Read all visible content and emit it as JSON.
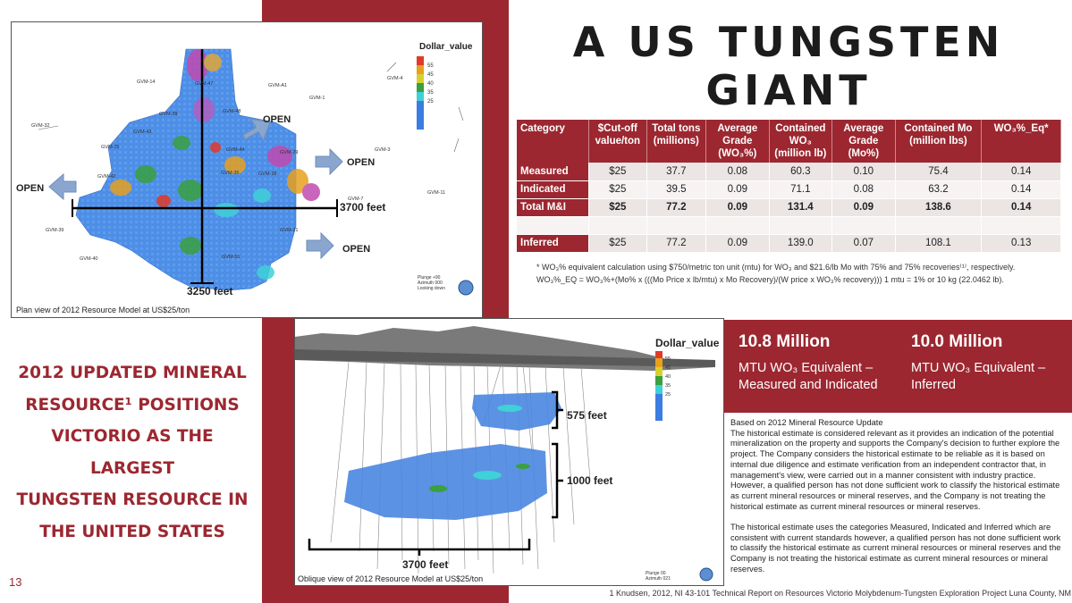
{
  "title": {
    "line1": "A US TUNGSTEN",
    "line2": "GIANT"
  },
  "plan_view": {
    "legend_title": "Dollar_value",
    "legend_ticks": [
      "55",
      "45",
      "40",
      "35",
      "25"
    ],
    "labels": {
      "open_top": "OPEN",
      "open_right": "OPEN",
      "open_left": "OPEN",
      "open_bottom": "OPEN",
      "width": "3700 feet",
      "height": "3250 feet"
    },
    "drillholes": [
      "GVM-14",
      "GVM-47",
      "GVM-A1",
      "GVM-1",
      "GVM-4",
      "GVM-32",
      "GVM-48",
      "GVM-25",
      "GVM-43",
      "GVM-29",
      "GVM-3",
      "GVM-11",
      "GVM-7",
      "GVM-39",
      "GVM-40",
      "GVM-51",
      "GVM-21",
      "GVM-42",
      "GVM-38",
      "GVM-44",
      "GVM-35",
      "GVM-28"
    ],
    "plunge_note": "Plunge +90\nAzimuth 000\nLooking down",
    "caption": "Plan view of 2012 Resource Model at US$25/ton"
  },
  "oblique_view": {
    "legend_title": "Dollar_value",
    "legend_ticks": [
      "55",
      "45",
      "40",
      "35",
      "25"
    ],
    "labels": {
      "upper_span": "575 feet",
      "lower_span": "1000 feet",
      "width": "3700 feet"
    },
    "plunge_note": "Plunge 00\nAzimuth 021",
    "caption": "Oblique view of 2012 Resource Model at US$25/ton"
  },
  "table": {
    "headers": [
      "Category",
      "$Cut-off value/ton",
      "Total tons (millions)",
      "Average Grade (WO₃%)",
      "Contained WO₃ (million lb)",
      "Average Grade (Mo%)",
      "Contained Mo (million lbs)",
      "WO₃%_Eq*"
    ],
    "rows": [
      [
        "Measured",
        "$25",
        "37.7",
        "0.08",
        "60.3",
        "0.10",
        "75.4",
        "0.14"
      ],
      [
        "Indicated",
        "$25",
        "39.5",
        "0.09",
        "71.1",
        "0.08",
        "63.2",
        "0.14"
      ],
      [
        "Total M&I",
        "$25",
        "77.2",
        "0.09",
        "131.4",
        "0.09",
        "138.6",
        "0.14"
      ],
      [
        "",
        "",
        "",
        "",
        "",
        "",
        "",
        ""
      ],
      [
        "Inferred",
        "$25",
        "77.2",
        "0.09",
        "139.0",
        "0.07",
        "108.1",
        "0.13"
      ]
    ]
  },
  "footnote": {
    "line1": "* WO₃% equivalent calculation using $750/metric ton unit (mtu) for WO₃ and $21.6/lb Mo with 75% and 75% recoveries⁽¹⁾, respectively.",
    "line2": "WO₃%_EQ = WO₃%+(Mo% x (((Mo Price x lb/mtu) x Mo Recovery)/(W price x WO₃% recovery))) 1 mtu = 1% or 10 kg (22.0462 lb)."
  },
  "left_statement": {
    "line1": "2012 UPDATED MINERAL",
    "line2": "RESOURCE¹ POSITIONS",
    "line3": "VICTORIO AS THE LARGEST",
    "line4": "TUNGSTEN RESOURCE IN",
    "line5": "THE UNITED STATES"
  },
  "page_number": "13",
  "mtu_box": {
    "left_value": "10.8 Million",
    "left_label": "MTU WO₃ Equivalent – Measured and Indicated",
    "right_value": "10.0 Million",
    "right_label": "MTU WO₃ Equivalent – Inferred"
  },
  "body": {
    "heading": "Based on 2012 Mineral Resource Update",
    "paragraph1": "The historical estimate is considered relevant as it provides an indication of the potential mineralization on the property and supports the Company's decision to further explore the project. The Company considers the historical estimate to be reliable as it is based on internal due diligence and estimate verification from an independent contractor that, in management's view, were carried out in a manner consistent with industry practice. However, a qualified person has not done sufficient work to classify the historical estimate as current mineral resources or mineral reserves, and the Company is not treating the historical estimate as current mineral resources or mineral reserves.",
    "paragraph2": "The historical estimate uses the categories Measured, Indicated and Inferred which are consistent with current standards however, a qualified person has not done sufficient work to classify the historical estimate as current mineral resources or mineral reserves and the Company is not treating the historical estimate as current mineral resources or mineral reserves."
  },
  "reference": "1 Knudsen, 2012, NI 43-101 Technical Report on Resources Victorio Molybdenum-Tungsten Exploration Project Luna County, NM",
  "colors": {
    "brand_red": "#9c2730",
    "legend": [
      "#e03a2a",
      "#e8a020",
      "#3aa040",
      "#3fd0d8",
      "#3b7de0"
    ]
  }
}
